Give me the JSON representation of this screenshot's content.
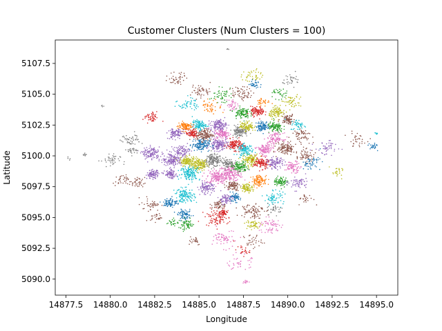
{
  "chart_data": {
    "type": "scatter",
    "title": "Customer Clusters (Num Clusters = 100)",
    "xlabel": "Longitude",
    "ylabel": "Latitude",
    "xlim": [
      14876.9,
      14896.2
    ],
    "ylim": [
      5088.7,
      5109.4
    ],
    "x_ticks": [
      14877.5,
      14880.0,
      14882.5,
      14885.0,
      14887.5,
      14890.0,
      14892.5,
      14895.0
    ],
    "x_tick_labels": [
      "14877.5",
      "14880.0",
      "14882.5",
      "14885.0",
      "14887.5",
      "14890.0",
      "14892.5",
      "14895.0"
    ],
    "y_ticks": [
      5090.0,
      5092.5,
      5095.0,
      5097.5,
      5100.0,
      5102.5,
      5105.0,
      5107.5
    ],
    "y_tick_labels": [
      "5090.0",
      "5092.5",
      "5095.0",
      "5097.5",
      "5100.0",
      "5102.5",
      "5105.0",
      "5107.5"
    ],
    "grid": false,
    "legend": "none",
    "palette": [
      "#1f77b4",
      "#ff7f0e",
      "#2ca02c",
      "#d62728",
      "#9467bd",
      "#8c564b",
      "#e377c2",
      "#7f7f7f",
      "#bcbd22",
      "#17becf"
    ],
    "clusters": [
      {
        "cx": 14885.0,
        "cy": 5099.3,
        "color": "#bcbd22",
        "spread": 0.45,
        "n": 40
      },
      {
        "cx": 14884.3,
        "cy": 5099.6,
        "color": "#bcbd22",
        "spread": 0.35,
        "n": 30
      },
      {
        "cx": 14885.8,
        "cy": 5099.6,
        "color": "#7f7f7f",
        "spread": 0.45,
        "n": 40
      },
      {
        "cx": 14886.8,
        "cy": 5098.6,
        "color": "#e377c2",
        "spread": 0.6,
        "n": 50
      },
      {
        "cx": 14886.0,
        "cy": 5098.3,
        "color": "#e377c2",
        "spread": 0.5,
        "n": 40
      },
      {
        "cx": 14887.3,
        "cy": 5099.1,
        "color": "#2ca02c",
        "spread": 0.4,
        "n": 30
      },
      {
        "cx": 14887.9,
        "cy": 5099.7,
        "color": "#bcbd22",
        "spread": 0.4,
        "n": 30
      },
      {
        "cx": 14887.6,
        "cy": 5100.5,
        "color": "#17becf",
        "spread": 0.4,
        "n": 30
      },
      {
        "cx": 14887.0,
        "cy": 5100.9,
        "color": "#d62728",
        "spread": 0.4,
        "n": 30
      },
      {
        "cx": 14886.1,
        "cy": 5100.9,
        "color": "#9467bd",
        "spread": 0.45,
        "n": 35
      },
      {
        "cx": 14885.1,
        "cy": 5100.9,
        "color": "#1f77b4",
        "spread": 0.45,
        "n": 35
      },
      {
        "cx": 14885.3,
        "cy": 5101.7,
        "color": "#8c564b",
        "spread": 0.45,
        "n": 35
      },
      {
        "cx": 14886.3,
        "cy": 5101.8,
        "color": "#e377c2",
        "spread": 0.4,
        "n": 30
      },
      {
        "cx": 14887.3,
        "cy": 5102.0,
        "color": "#7f7f7f",
        "spread": 0.4,
        "n": 30
      },
      {
        "cx": 14886.1,
        "cy": 5102.5,
        "color": "#9467bd",
        "spread": 0.4,
        "n": 30
      },
      {
        "cx": 14885.0,
        "cy": 5102.5,
        "color": "#17becf",
        "spread": 0.35,
        "n": 25
      },
      {
        "cx": 14884.2,
        "cy": 5102.4,
        "color": "#ff7f0e",
        "spread": 0.35,
        "n": 25
      },
      {
        "cx": 14884.6,
        "cy": 5101.8,
        "color": "#d62728",
        "spread": 0.3,
        "n": 20
      },
      {
        "cx": 14887.7,
        "cy": 5102.4,
        "color": "#bcbd22",
        "spread": 0.35,
        "n": 25
      },
      {
        "cx": 14888.6,
        "cy": 5102.4,
        "color": "#1f77b4",
        "spread": 0.35,
        "n": 25
      },
      {
        "cx": 14887.4,
        "cy": 5103.5,
        "color": "#2ca02c",
        "spread": 0.4,
        "n": 25
      },
      {
        "cx": 14888.3,
        "cy": 5103.6,
        "color": "#d62728",
        "spread": 0.35,
        "n": 25
      },
      {
        "cx": 14889.4,
        "cy": 5103.5,
        "color": "#bcbd22",
        "spread": 0.4,
        "n": 25
      },
      {
        "cx": 14889.3,
        "cy": 5102.3,
        "color": "#2ca02c",
        "spread": 0.4,
        "n": 25
      },
      {
        "cx": 14890.0,
        "cy": 5103.0,
        "color": "#8c564b",
        "spread": 0.35,
        "n": 20
      },
      {
        "cx": 14889.3,
        "cy": 5101.4,
        "color": "#e377c2",
        "spread": 0.4,
        "n": 25
      },
      {
        "cx": 14888.7,
        "cy": 5100.5,
        "color": "#e377c2",
        "spread": 0.4,
        "n": 30
      },
      {
        "cx": 14889.9,
        "cy": 5100.6,
        "color": "#8c564b",
        "spread": 0.45,
        "n": 30
      },
      {
        "cx": 14888.5,
        "cy": 5099.4,
        "color": "#d62728",
        "spread": 0.4,
        "n": 30
      },
      {
        "cx": 14889.3,
        "cy": 5099.4,
        "color": "#9467bd",
        "spread": 0.4,
        "n": 25
      },
      {
        "cx": 14890.3,
        "cy": 5099.1,
        "color": "#e377c2",
        "spread": 0.4,
        "n": 20
      },
      {
        "cx": 14888.4,
        "cy": 5098.0,
        "color": "#ff7f0e",
        "spread": 0.4,
        "n": 25
      },
      {
        "cx": 14887.7,
        "cy": 5097.4,
        "color": "#bcbd22",
        "spread": 0.3,
        "n": 20
      },
      {
        "cx": 14889.6,
        "cy": 5097.9,
        "color": "#2ca02c",
        "spread": 0.35,
        "n": 20
      },
      {
        "cx": 14886.9,
        "cy": 5097.6,
        "color": "#8c564b",
        "spread": 0.35,
        "n": 20
      },
      {
        "cx": 14886.5,
        "cy": 5096.5,
        "color": "#9467bd",
        "spread": 0.4,
        "n": 20
      },
      {
        "cx": 14887.0,
        "cy": 5096.6,
        "color": "#1f77b4",
        "spread": 0.3,
        "n": 15
      },
      {
        "cx": 14885.4,
        "cy": 5097.4,
        "color": "#9467bd",
        "spread": 0.4,
        "n": 25
      },
      {
        "cx": 14884.5,
        "cy": 5098.6,
        "color": "#17becf",
        "spread": 0.5,
        "n": 35
      },
      {
        "cx": 14883.5,
        "cy": 5099.7,
        "color": "#9467bd",
        "spread": 0.5,
        "n": 35
      },
      {
        "cx": 14882.3,
        "cy": 5100.2,
        "color": "#9467bd",
        "spread": 0.45,
        "n": 30
      },
      {
        "cx": 14882.4,
        "cy": 5098.5,
        "color": "#9467bd",
        "spread": 0.3,
        "n": 25
      },
      {
        "cx": 14883.4,
        "cy": 5098.5,
        "color": "#9467bd",
        "spread": 0.3,
        "n": 20
      },
      {
        "cx": 14883.7,
        "cy": 5101.8,
        "color": "#9467bd",
        "spread": 0.4,
        "n": 25
      },
      {
        "cx": 14884.2,
        "cy": 5096.8,
        "color": "#17becf",
        "spread": 0.5,
        "n": 30
      },
      {
        "cx": 14883.4,
        "cy": 5096.2,
        "color": "#1f77b4",
        "spread": 0.35,
        "n": 20
      },
      {
        "cx": 14884.2,
        "cy": 5095.2,
        "color": "#1f77b4",
        "spread": 0.35,
        "n": 20
      },
      {
        "cx": 14884.3,
        "cy": 5094.4,
        "color": "#2ca02c",
        "spread": 0.4,
        "n": 15
      },
      {
        "cx": 14886.0,
        "cy": 5095.0,
        "color": "#d62728",
        "spread": 0.6,
        "n": 25
      },
      {
        "cx": 14886.4,
        "cy": 5095.4,
        "color": "#d62728",
        "spread": 0.2,
        "n": 10
      },
      {
        "cx": 14888.0,
        "cy": 5095.6,
        "color": "#8c564b",
        "spread": 0.6,
        "n": 20
      },
      {
        "cx": 14888.0,
        "cy": 5094.4,
        "color": "#bcbd22",
        "spread": 0.4,
        "n": 12
      },
      {
        "cx": 14889.0,
        "cy": 5094.3,
        "color": "#e377c2",
        "spread": 0.6,
        "n": 15
      },
      {
        "cx": 14886.5,
        "cy": 5093.3,
        "color": "#e377c2",
        "spread": 0.6,
        "n": 15
      },
      {
        "cx": 14887.3,
        "cy": 5091.3,
        "color": "#e377c2",
        "spread": 0.6,
        "n": 10
      },
      {
        "cx": 14889.2,
        "cy": 5096.6,
        "color": "#17becf",
        "spread": 0.5,
        "n": 15
      },
      {
        "cx": 14890.6,
        "cy": 5097.8,
        "color": "#9467bd",
        "spread": 0.5,
        "n": 15
      },
      {
        "cx": 14891.0,
        "cy": 5100.0,
        "color": "#8c564b",
        "spread": 0.5,
        "n": 15
      },
      {
        "cx": 14891.3,
        "cy": 5099.4,
        "color": "#1f77b4",
        "spread": 0.5,
        "n": 12
      },
      {
        "cx": 14890.8,
        "cy": 5101.7,
        "color": "#8c564b",
        "spread": 0.5,
        "n": 15
      },
      {
        "cx": 14892.2,
        "cy": 5100.6,
        "color": "#9467bd",
        "spread": 0.6,
        "n": 12
      },
      {
        "cx": 14893.9,
        "cy": 5101.3,
        "color": "#8c564b",
        "spread": 0.5,
        "n": 8
      },
      {
        "cx": 14894.8,
        "cy": 5100.8,
        "color": "#1f77b4",
        "spread": 0.3,
        "n": 6
      },
      {
        "cx": 14892.8,
        "cy": 5098.6,
        "color": "#bcbd22",
        "spread": 0.4,
        "n": 6
      },
      {
        "cx": 14887.4,
        "cy": 5105.1,
        "color": "#8c564b",
        "spread": 0.5,
        "n": 15
      },
      {
        "cx": 14886.2,
        "cy": 5104.9,
        "color": "#2ca02c",
        "spread": 0.5,
        "n": 12
      },
      {
        "cx": 14888.0,
        "cy": 5106.5,
        "color": "#bcbd22",
        "spread": 0.5,
        "n": 10
      },
      {
        "cx": 14888.2,
        "cy": 5105.8,
        "color": "#1f77b4",
        "spread": 0.3,
        "n": 8
      },
      {
        "cx": 14885.1,
        "cy": 5105.3,
        "color": "#8c564b",
        "spread": 0.5,
        "n": 12
      },
      {
        "cx": 14883.8,
        "cy": 5106.3,
        "color": "#8c564b",
        "spread": 0.5,
        "n": 10
      },
      {
        "cx": 14884.4,
        "cy": 5104.2,
        "color": "#17becf",
        "spread": 0.5,
        "n": 12
      },
      {
        "cx": 14885.7,
        "cy": 5104.0,
        "color": "#ff7f0e",
        "spread": 0.5,
        "n": 12
      },
      {
        "cx": 14886.9,
        "cy": 5104.1,
        "color": "#e377c2",
        "spread": 0.4,
        "n": 10
      },
      {
        "cx": 14890.2,
        "cy": 5104.4,
        "color": "#bcbd22",
        "spread": 0.5,
        "n": 12
      },
      {
        "cx": 14890.2,
        "cy": 5106.2,
        "color": "#7f7f7f",
        "spread": 0.5,
        "n": 8
      },
      {
        "cx": 14889.6,
        "cy": 5105.0,
        "color": "#2ca02c",
        "spread": 0.4,
        "n": 8
      },
      {
        "cx": 14882.3,
        "cy": 5103.1,
        "color": "#d62728",
        "spread": 0.4,
        "n": 12
      },
      {
        "cx": 14881.2,
        "cy": 5101.3,
        "color": "#7f7f7f",
        "spread": 0.5,
        "n": 12
      },
      {
        "cx": 14880.0,
        "cy": 5099.6,
        "color": "#7f7f7f",
        "spread": 0.5,
        "n": 10
      },
      {
        "cx": 14880.6,
        "cy": 5098.0,
        "color": "#8c564b",
        "spread": 0.4,
        "n": 8
      },
      {
        "cx": 14881.5,
        "cy": 5097.8,
        "color": "#8c564b",
        "spread": 0.4,
        "n": 10
      },
      {
        "cx": 14882.3,
        "cy": 5096.1,
        "color": "#8c564b",
        "spread": 0.5,
        "n": 10
      },
      {
        "cx": 14882.6,
        "cy": 5095.0,
        "color": "#8c564b",
        "spread": 0.3,
        "n": 6
      },
      {
        "cx": 14883.5,
        "cy": 5094.6,
        "color": "#2ca02c",
        "spread": 0.3,
        "n": 6
      },
      {
        "cx": 14881.3,
        "cy": 5100.4,
        "color": "#7f7f7f",
        "spread": 0.3,
        "n": 6
      },
      {
        "cx": 14884.7,
        "cy": 5093.2,
        "color": "#8c564b",
        "spread": 0.4,
        "n": 6
      },
      {
        "cx": 14889.3,
        "cy": 5095.7,
        "color": "#7f7f7f",
        "spread": 0.4,
        "n": 8
      },
      {
        "cx": 14891.0,
        "cy": 5096.5,
        "color": "#8c564b",
        "spread": 0.4,
        "n": 6
      },
      {
        "cx": 14890.6,
        "cy": 5102.5,
        "color": "#17becf",
        "spread": 0.4,
        "n": 10
      },
      {
        "cx": 14888.6,
        "cy": 5104.4,
        "color": "#ff7f0e",
        "spread": 0.35,
        "n": 8
      },
      {
        "cx": 14886.6,
        "cy": 5099.4,
        "color": "#7f7f7f",
        "spread": 0.35,
        "n": 20
      },
      {
        "cx": 14884.0,
        "cy": 5100.4,
        "color": "#9467bd",
        "spread": 0.4,
        "n": 20
      },
      {
        "cx": 14886.1,
        "cy": 5096.0,
        "color": "#8c564b",
        "spread": 0.35,
        "n": 12
      },
      {
        "cx": 14888.0,
        "cy": 5093.1,
        "color": "#8c564b",
        "spread": 0.5,
        "n": 8
      },
      {
        "cx": 14887.4,
        "cy": 5092.3,
        "color": "#d62728",
        "spread": 0.4,
        "n": 6
      },
      {
        "cx": 14877.7,
        "cy": 5099.8,
        "color": "#7f7f7f",
        "spread": 0.1,
        "n": 1
      },
      {
        "cx": 14878.6,
        "cy": 5100.1,
        "color": "#7f7f7f",
        "spread": 0.1,
        "n": 2
      },
      {
        "cx": 14879.6,
        "cy": 5104.0,
        "color": "#7f7f7f",
        "spread": 0.1,
        "n": 1
      },
      {
        "cx": 14886.6,
        "cy": 5108.6,
        "color": "#7f7f7f",
        "spread": 0.1,
        "n": 1
      },
      {
        "cx": 14887.6,
        "cy": 5089.8,
        "color": "#e377c2",
        "spread": 0.15,
        "n": 3
      },
      {
        "cx": 14895.0,
        "cy": 5101.8,
        "color": "#17becf",
        "spread": 0.1,
        "n": 2
      }
    ]
  }
}
